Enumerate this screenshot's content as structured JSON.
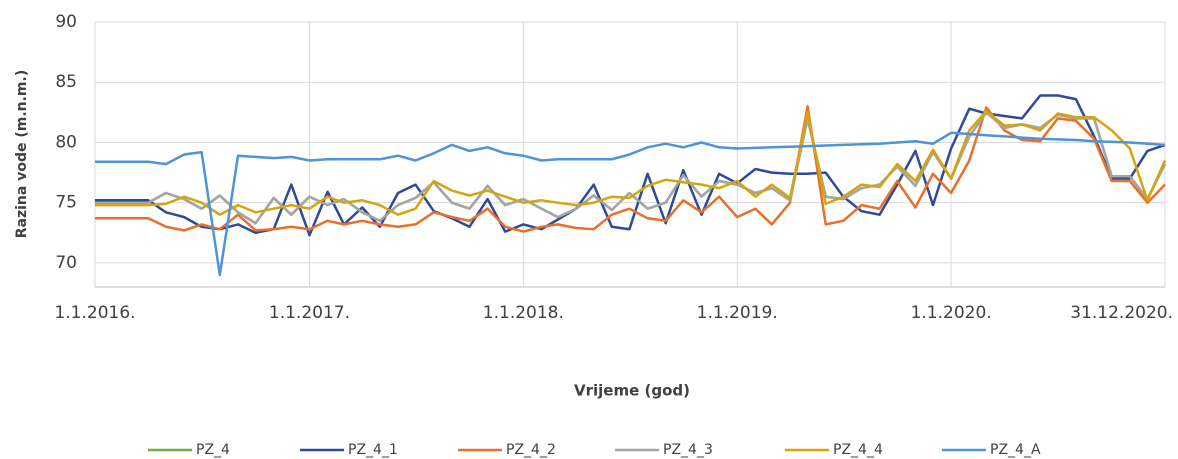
{
  "chart_data": {
    "type": "line",
    "y_label": "Razina vode (m.n.m.)",
    "x_label": "Vrijeme (god)",
    "x": [
      "2016-01-01",
      "2016-02-01",
      "2016-03-01",
      "2016-04-01",
      "2016-05-01",
      "2016-06-01",
      "2016-07-01",
      "2016-08-01",
      "2016-09-01",
      "2016-10-01",
      "2016-11-01",
      "2016-12-01",
      "2017-01-01",
      "2017-02-01",
      "2017-03-01",
      "2017-04-01",
      "2017-05-01",
      "2017-06-01",
      "2017-07-01",
      "2017-08-01",
      "2017-09-01",
      "2017-10-01",
      "2017-11-01",
      "2017-12-01",
      "2018-01-01",
      "2018-02-01",
      "2018-03-01",
      "2018-04-01",
      "2018-05-01",
      "2018-06-01",
      "2018-07-01",
      "2018-08-01",
      "2018-09-01",
      "2018-10-01",
      "2018-11-01",
      "2018-12-01",
      "2019-01-01",
      "2019-02-01",
      "2019-03-01",
      "2019-04-01",
      "2019-05-01",
      "2019-06-01",
      "2019-07-01",
      "2019-08-01",
      "2019-09-01",
      "2019-10-01",
      "2019-11-01",
      "2019-12-01",
      "2020-01-01",
      "2020-02-01",
      "2020-03-01",
      "2020-04-01",
      "2020-05-01",
      "2020-06-01",
      "2020-07-01",
      "2020-08-01",
      "2020-09-01",
      "2020-10-01",
      "2020-11-01",
      "2020-12-01",
      "2020-12-31"
    ],
    "series": [
      {
        "name": "PZ_4",
        "color": "#70ad47",
        "values": [
          75.0,
          75.0,
          75.0,
          75.0,
          75.8,
          75.3,
          74.5,
          75.6,
          74.2,
          73.3,
          75.4,
          74.0,
          75.5,
          74.8,
          75.3,
          74.2,
          73.5,
          74.8,
          75.4,
          76.7,
          75.0,
          74.5,
          76.4,
          74.8,
          75.3,
          74.5,
          73.8,
          74.5,
          75.6,
          74.4,
          75.8,
          74.5,
          75.0,
          77.3,
          75.5,
          76.8,
          76.5,
          75.8,
          76.2,
          75.2,
          82.0,
          75.5,
          75.3,
          76.2,
          76.5,
          78.0,
          76.4,
          79.2,
          77.0,
          80.5,
          82.5,
          81.2,
          81.5,
          81.2,
          82.3,
          82.0,
          82.0,
          77.2,
          77.2,
          75.3,
          78.2
        ]
      },
      {
        "name": "PZ_4_1",
        "color": "#2e4a9a",
        "values": [
          75.2,
          75.2,
          75.2,
          75.2,
          74.2,
          73.8,
          73.0,
          72.8,
          73.2,
          72.5,
          72.8,
          76.5,
          72.3,
          75.9,
          73.2,
          74.6,
          73.0,
          75.8,
          76.5,
          74.3,
          73.7,
          73.0,
          75.3,
          72.6,
          73.2,
          72.8,
          73.6,
          74.5,
          76.5,
          73.0,
          72.8,
          77.4,
          73.3,
          77.7,
          74.0,
          77.4,
          76.6,
          77.8,
          77.5,
          77.4,
          77.4,
          77.5,
          75.5,
          74.3,
          74.0,
          76.5,
          79.3,
          74.8,
          79.5,
          82.8,
          82.4,
          82.2,
          82.0,
          83.9,
          83.9,
          83.6,
          80.5,
          77.0,
          77.0,
          79.3,
          79.8
        ]
      },
      {
        "name": "PZ_4_2",
        "color": "#e8702a",
        "values": [
          73.7,
          73.7,
          73.7,
          73.7,
          73.0,
          72.7,
          73.2,
          72.8,
          74.0,
          72.7,
          72.8,
          73.0,
          72.8,
          73.5,
          73.2,
          73.5,
          73.2,
          73.0,
          73.2,
          74.2,
          73.8,
          73.5,
          74.5,
          73.0,
          72.6,
          73.0,
          73.2,
          72.9,
          72.8,
          74.0,
          74.5,
          73.7,
          73.5,
          75.2,
          74.2,
          75.5,
          73.8,
          74.5,
          73.2,
          75.0,
          83.0,
          73.2,
          73.5,
          74.8,
          74.5,
          76.8,
          74.6,
          77.4,
          75.8,
          78.5,
          82.9,
          81.0,
          80.2,
          80.1,
          82.0,
          81.8,
          80.3,
          76.8,
          76.8,
          75.0,
          76.5
        ]
      },
      {
        "name": "PZ_4_3",
        "color": "#a5a5a5",
        "values": [
          75.0,
          75.0,
          75.0,
          75.0,
          75.8,
          75.3,
          74.5,
          75.6,
          74.2,
          73.3,
          75.4,
          74.0,
          75.5,
          74.8,
          75.3,
          74.2,
          73.5,
          74.8,
          75.4,
          76.7,
          75.0,
          74.5,
          76.4,
          74.8,
          75.3,
          74.5,
          73.8,
          74.5,
          75.6,
          74.4,
          75.8,
          74.5,
          75.0,
          77.3,
          75.5,
          76.8,
          76.5,
          75.8,
          76.2,
          75.2,
          82.0,
          75.5,
          75.3,
          76.2,
          76.5,
          78.0,
          76.4,
          79.2,
          77.0,
          80.5,
          82.5,
          81.2,
          81.5,
          81.2,
          82.3,
          82.0,
          82.0,
          77.2,
          77.2,
          75.3,
          78.2
        ]
      },
      {
        "name": "PZ_4_4",
        "color": "#d4a50f",
        "values": [
          74.8,
          74.8,
          74.8,
          74.8,
          74.9,
          75.5,
          75.0,
          74.0,
          74.8,
          74.2,
          74.5,
          74.8,
          74.5,
          75.5,
          75.0,
          75.2,
          74.8,
          74.0,
          74.5,
          76.8,
          76.0,
          75.6,
          76.0,
          75.5,
          75.0,
          75.2,
          75.0,
          74.8,
          75.0,
          75.5,
          75.4,
          76.4,
          76.9,
          76.7,
          76.5,
          76.2,
          76.8,
          75.5,
          76.5,
          75.4,
          82.5,
          74.9,
          75.5,
          76.5,
          76.3,
          78.2,
          76.8,
          79.4,
          77.0,
          81.0,
          82.6,
          81.4,
          81.5,
          81.0,
          82.4,
          82.1,
          82.1,
          81.0,
          79.5,
          75.2,
          78.5
        ]
      },
      {
        "name": "PZ_4_A",
        "color": "#4f93d8",
        "values": [
          78.4,
          78.4,
          78.4,
          78.4,
          78.2,
          79.0,
          79.2,
          69.0,
          78.9,
          78.8,
          78.7,
          78.8,
          78.5,
          78.6,
          78.6,
          78.6,
          78.6,
          78.9,
          78.5,
          79.1,
          79.8,
          79.3,
          79.6,
          79.1,
          78.9,
          78.5,
          78.6,
          78.6,
          78.6,
          78.6,
          79.0,
          79.6,
          79.9,
          79.6,
          80.0,
          79.6,
          79.5,
          79.55,
          79.6,
          79.65,
          79.7,
          79.75,
          79.8,
          79.85,
          79.9,
          80.0,
          80.1,
          79.9,
          80.8,
          80.7,
          80.6,
          80.5,
          80.4,
          80.3,
          80.25,
          80.2,
          80.1,
          80.05,
          80.0,
          79.9,
          79.8
        ]
      }
    ],
    "xlim": [
      "2016-01-01",
      "2020-12-31"
    ],
    "xticks": [
      {
        "value": "2016-01-01",
        "label": "1.1.2016."
      },
      {
        "value": "2017-01-01",
        "label": "1.1.2017."
      },
      {
        "value": "2018-01-01",
        "label": "1.1.2018."
      },
      {
        "value": "2019-01-01",
        "label": "1.1.2019."
      },
      {
        "value": "2020-01-01",
        "label": "1.1.2020."
      },
      {
        "value": "2020-12-31",
        "label": "31.12.2020."
      }
    ],
    "ylim": [
      68,
      90
    ],
    "yticks": [
      70,
      75,
      80,
      85,
      90
    ],
    "grid": true,
    "legend": "bottom"
  }
}
